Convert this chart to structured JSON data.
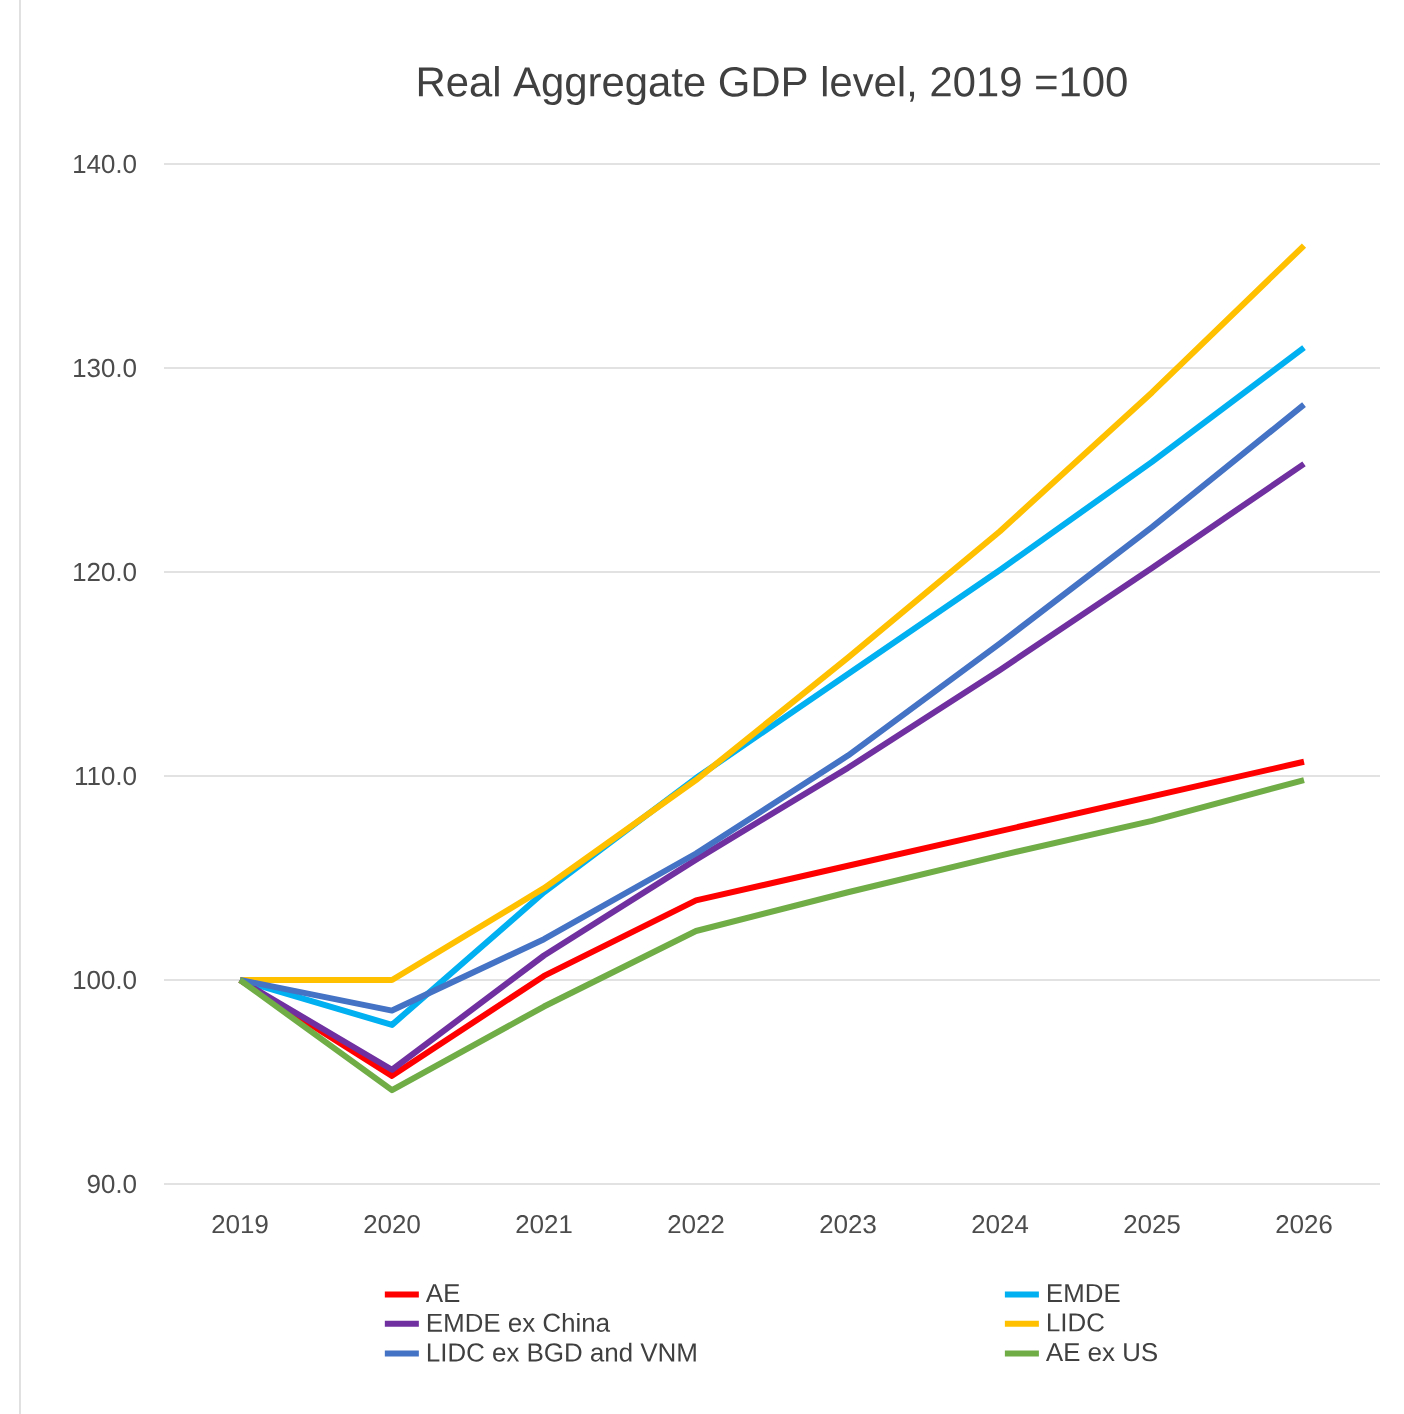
{
  "chart_data": {
    "type": "line",
    "title": "Real Aggregate GDP level, 2019 =100",
    "categories": [
      "2019",
      "2020",
      "2021",
      "2022",
      "2023",
      "2024",
      "2025",
      "2026"
    ],
    "series": [
      {
        "name": "AE",
        "color": "#ff0000",
        "values": [
          100,
          95.3,
          100.2,
          103.9,
          105.6,
          107.3,
          109.0,
          110.7
        ]
      },
      {
        "name": "EMDE",
        "color": "#00b0f0",
        "values": [
          100,
          97.8,
          104.3,
          109.9,
          115.0,
          120.1,
          125.4,
          131.0
        ]
      },
      {
        "name": "EMDE ex China",
        "color": "#7030a0",
        "values": [
          100,
          95.6,
          101.2,
          105.9,
          110.4,
          115.2,
          120.2,
          125.3
        ]
      },
      {
        "name": "LIDC",
        "color": "#ffc000",
        "values": [
          100,
          100,
          104.5,
          109.8,
          115.8,
          122.0,
          128.8,
          136.0
        ]
      },
      {
        "name": "LIDC ex BGD and VNM",
        "color": "#4472c4",
        "values": [
          100,
          98.5,
          102.0,
          106.2,
          111.0,
          116.5,
          122.2,
          128.2
        ]
      },
      {
        "name": "AE ex US",
        "color": "#70ad47",
        "values": [
          100,
          94.6,
          98.7,
          102.4,
          104.3,
          106.1,
          107.8,
          109.8
        ]
      }
    ],
    "ylim": [
      90,
      140
    ],
    "yticks": [
      {
        "value": 90,
        "label": "90.0"
      },
      {
        "value": 100,
        "label": "100.0"
      },
      {
        "value": 110,
        "label": "110.0"
      },
      {
        "value": 120,
        "label": "120.0"
      },
      {
        "value": 130,
        "label": "130.0"
      },
      {
        "value": 140,
        "label": "140.0"
      }
    ],
    "grid": "y",
    "legend": "bottom",
    "marker": "none",
    "line_style": "solid"
  }
}
